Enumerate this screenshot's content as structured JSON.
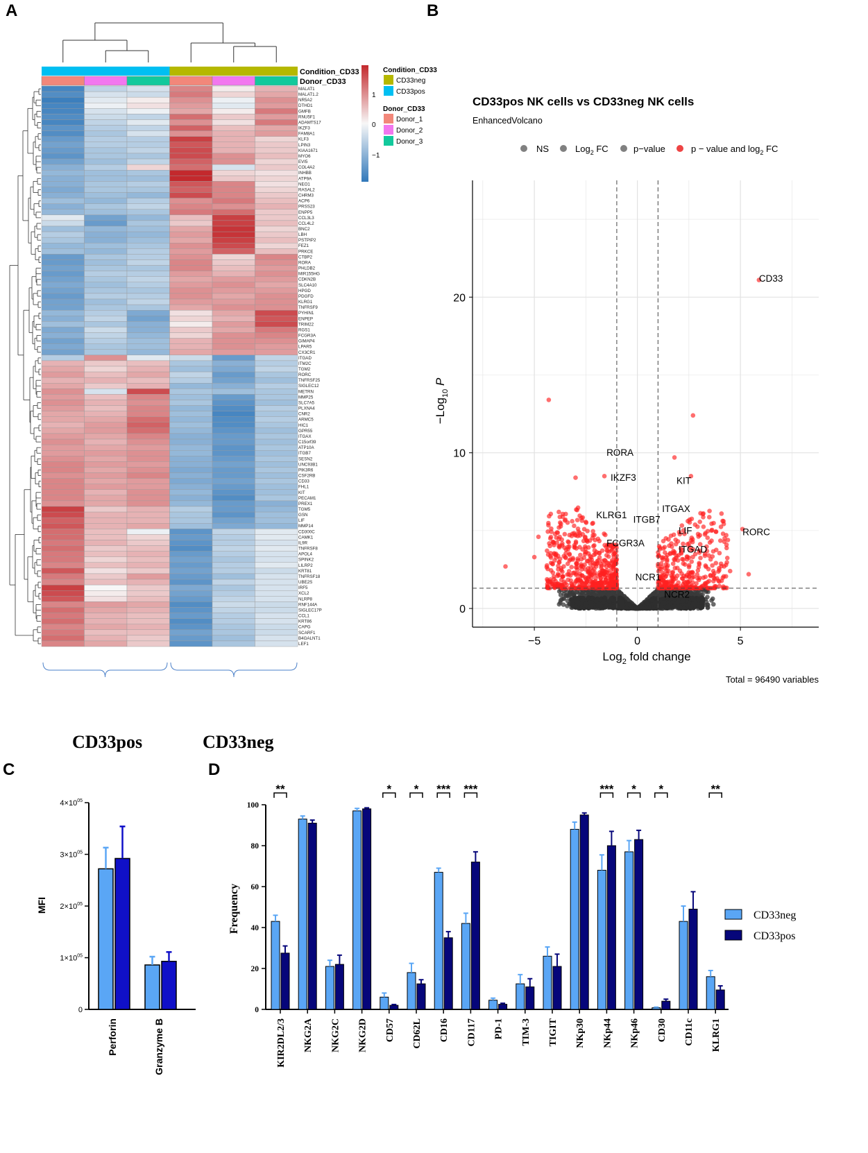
{
  "panels": {
    "a": "A",
    "b": "B",
    "c": "C",
    "d": "D"
  },
  "heatmap": {
    "group_labels": [
      "CD33pos",
      "CD33neg"
    ],
    "annotation_titles": [
      "Condition_CD33",
      "Donor_CD33"
    ],
    "legend": {
      "condition_title": "Condition_CD33",
      "condition_items": [
        {
          "label": "CD33neg",
          "color": "#b5b800"
        },
        {
          "label": "CD33pos",
          "color": "#00bff2"
        }
      ],
      "donor_title": "Donor_CD33",
      "donor_items": [
        {
          "label": "Donor_1",
          "color": "#f2877a"
        },
        {
          "label": "Donor_2",
          "color": "#f277ef"
        },
        {
          "label": "Donor_3",
          "color": "#12c99c"
        }
      ],
      "scale_ticks": [
        "1",
        "0",
        "−1"
      ]
    },
    "column_condition": [
      "CD33pos",
      "CD33pos",
      "CD33pos",
      "CD33neg",
      "CD33neg",
      "CD33neg"
    ],
    "column_donor": [
      "Donor_1",
      "Donor_2",
      "Donor_3",
      "Donor_1",
      "Donor_2",
      "Donor_3"
    ],
    "genes": [
      "MALAT1",
      "MALAT1.2",
      "NR5A2",
      "DTHD1",
      "GMFB",
      "RNU5F1",
      "ADAMTS17",
      "IKZF3",
      "FAM8A1",
      "KLF3",
      "LPIN3",
      "KIAA1671",
      "MYO6",
      "EVI5",
      "COL4A2",
      "INHBB",
      "ATP9A",
      "NEO1",
      "RASAL2",
      "CHRM3",
      "ACP6",
      "PRSS23",
      "ENPP5",
      "CCL3L3",
      "CCL4L2",
      "BNC2",
      "LBH",
      "PSTPIP2",
      "FEZ1",
      "PRKCE",
      "CTBP2",
      "RORA",
      "PHLDB2",
      "MIR155HG",
      "CDKN2B",
      "SLC4A10",
      "HPGD",
      "PDGFD",
      "KLRG1",
      "TNFRSF9",
      "PYHIN1",
      "ENPEP",
      "TRIM22",
      "RGS1",
      "FCGR3A",
      "GIMAP4",
      "LPAR5",
      "CX3CR1",
      "ITGAD",
      "ITM2C",
      "TGM2",
      "RORC",
      "TNFRSF25",
      "SIGLEC12",
      "METRN",
      "MMP25",
      "SLC7A5",
      "PLXNA4",
      "CNR2",
      "ARMC5",
      "HIC1",
      "GPR55",
      "ITGAX",
      "C15orf39",
      "ATP10A",
      "ITGB7",
      "SESN2",
      "UNC93B1",
      "PIK3R6",
      "CSF2RB",
      "CD33",
      "FHL1",
      "KIT",
      "PECAM1",
      "PREX1",
      "TGM5",
      "GSN",
      "LIF",
      "MMP14",
      "CD300C",
      "CAMK1",
      "IL9R",
      "TNFRSF8",
      "APOL4",
      "SPINK2",
      "LILRP2",
      "KRT81",
      "TNFRSF18",
      "UBE2S",
      "IRF5",
      "XCL2",
      "NLRP8",
      "RNF144A",
      "SIGLEC17P",
      "CCL1",
      "KRT86",
      "CAPG",
      "SCARF1",
      "B4GALNT1",
      "LEF1"
    ],
    "values": [
      [
        -1.6,
        -0.5,
        -0.3,
        1.0,
        0.1,
        0.6
      ],
      [
        -1.5,
        -0.3,
        -0.4,
        1.1,
        0.3,
        0.7
      ],
      [
        -1.7,
        -0.2,
        0.1,
        0.9,
        -0.1,
        0.9
      ],
      [
        -1.6,
        -0.1,
        0.2,
        0.8,
        -0.2,
        0.8
      ],
      [
        -1.6,
        -0.3,
        -0.1,
        0.7,
        0.1,
        1.1
      ],
      [
        -1.5,
        -0.4,
        -0.5,
        1.2,
        0.4,
        0.8
      ],
      [
        -1.6,
        -0.5,
        -0.2,
        0.9,
        0.2,
        1.1
      ],
      [
        -1.4,
        -0.6,
        -0.5,
        1.3,
        0.5,
        0.7
      ],
      [
        -1.5,
        -0.7,
        -0.3,
        0.9,
        0.6,
        0.8
      ],
      [
        -1.3,
        -0.6,
        -0.6,
        1.6,
        0.6,
        0.3
      ],
      [
        -1.2,
        -0.6,
        -0.6,
        1.4,
        0.6,
        0.4
      ],
      [
        -1.3,
        -0.7,
        -0.5,
        1.5,
        0.6,
        0.4
      ],
      [
        -1.4,
        -0.7,
        -0.7,
        1.5,
        0.9,
        0.5
      ],
      [
        -1.2,
        -0.8,
        -0.5,
        1.3,
        0.9,
        0.3
      ],
      [
        -1.0,
        -0.6,
        0.3,
        1.2,
        -0.3,
        0.4
      ],
      [
        -0.9,
        -0.8,
        -0.7,
        1.9,
        0.3,
        0.2
      ],
      [
        -1.0,
        -0.8,
        -0.8,
        1.9,
        0.4,
        0.3
      ],
      [
        -1.0,
        -0.7,
        -0.6,
        1.4,
        1.0,
        0.2
      ],
      [
        -1.1,
        -0.7,
        -0.7,
        1.3,
        1.0,
        0.3
      ],
      [
        -1.0,
        -0.8,
        -0.9,
        1.5,
        1.0,
        0.4
      ],
      [
        -0.8,
        -0.9,
        -0.6,
        0.9,
        1.1,
        0.5
      ],
      [
        -1.0,
        -0.7,
        -0.5,
        1.0,
        0.9,
        0.6
      ],
      [
        -0.9,
        -0.8,
        -0.7,
        1.1,
        1.2,
        0.4
      ],
      [
        -0.2,
        -1.2,
        -0.9,
        0.5,
        1.6,
        0.4
      ],
      [
        -0.4,
        -1.3,
        -0.7,
        0.4,
        1.6,
        0.5
      ],
      [
        -0.8,
        -0.9,
        -0.8,
        0.7,
        1.7,
        0.3
      ],
      [
        -0.6,
        -1.0,
        -0.9,
        0.8,
        1.7,
        0.4
      ],
      [
        -0.7,
        -1.0,
        -0.8,
        0.7,
        1.6,
        0.5
      ],
      [
        -0.9,
        -0.8,
        -0.7,
        0.9,
        1.5,
        0.3
      ],
      [
        -0.8,
        -0.9,
        -0.6,
        0.8,
        1.3,
        0.5
      ],
      [
        -1.3,
        -0.7,
        -0.6,
        0.9,
        0.3,
        1.0
      ],
      [
        -1.3,
        -0.8,
        -0.5,
        1.0,
        0.4,
        0.9
      ],
      [
        -1.2,
        -0.7,
        -0.7,
        1.0,
        0.5,
        0.8
      ],
      [
        -1.3,
        -0.6,
        -0.6,
        0.8,
        0.6,
        0.9
      ],
      [
        -1.2,
        -0.7,
        -0.5,
        0.7,
        0.8,
        0.8
      ],
      [
        -1.1,
        -0.8,
        -0.6,
        0.8,
        0.9,
        0.7
      ],
      [
        -1.2,
        -0.7,
        -0.7,
        0.9,
        0.8,
        0.8
      ],
      [
        -1.3,
        -0.6,
        -0.6,
        0.9,
        0.7,
        0.9
      ],
      [
        -1.2,
        -0.8,
        -0.5,
        0.8,
        0.8,
        0.9
      ],
      [
        -1.2,
        -0.7,
        -0.7,
        0.7,
        0.9,
        0.9
      ],
      [
        -0.9,
        -0.6,
        -1.1,
        0.2,
        0.7,
        1.5
      ],
      [
        -1.0,
        -0.5,
        -1.2,
        0.3,
        0.6,
        1.4
      ],
      [
        -0.8,
        -0.7,
        -1.0,
        0.1,
        0.8,
        1.5
      ],
      [
        -1.1,
        -0.4,
        -1.0,
        0.4,
        0.7,
        1.1
      ],
      [
        -1.0,
        -0.5,
        -0.9,
        0.3,
        0.9,
        1.0
      ],
      [
        -1.2,
        -0.6,
        -0.8,
        0.6,
        0.9,
        0.9
      ],
      [
        -1.1,
        -0.7,
        -0.8,
        0.6,
        0.9,
        0.8
      ],
      [
        -1.2,
        -0.7,
        -0.9,
        0.7,
        0.8,
        0.8
      ],
      [
        -0.6,
        0.9,
        -0.2,
        -0.4,
        -1.3,
        -0.5
      ],
      [
        0.6,
        0.4,
        0.5,
        -0.7,
        -1.0,
        -0.6
      ],
      [
        0.7,
        0.3,
        0.6,
        -0.8,
        -1.1,
        -0.5
      ],
      [
        0.8,
        0.5,
        0.7,
        -0.5,
        -1.3,
        -0.7
      ],
      [
        0.6,
        0.6,
        0.5,
        -0.6,
        -1.2,
        -0.8
      ],
      [
        0.7,
        0.4,
        0.6,
        -0.9,
        -1.0,
        -0.6
      ],
      [
        0.9,
        -0.3,
        1.5,
        -0.7,
        -0.8,
        -0.7
      ],
      [
        0.8,
        0.5,
        1.0,
        -0.8,
        -1.3,
        -0.7
      ],
      [
        0.9,
        0.6,
        0.9,
        -0.7,
        -1.4,
        -0.8
      ],
      [
        0.8,
        0.5,
        1.0,
        -0.9,
        -1.5,
        -0.6
      ],
      [
        0.7,
        0.6,
        1.0,
        -0.8,
        -1.6,
        -0.7
      ],
      [
        0.7,
        0.7,
        1.2,
        -0.9,
        -1.5,
        -0.6
      ],
      [
        0.6,
        0.8,
        1.3,
        -0.8,
        -1.5,
        -0.7
      ],
      [
        0.7,
        0.8,
        1.2,
        -0.9,
        -1.4,
        -0.8
      ],
      [
        0.8,
        0.7,
        1.0,
        -1.0,
        -1.3,
        -0.7
      ],
      [
        0.9,
        0.6,
        0.9,
        -1.0,
        -1.3,
        -0.8
      ],
      [
        0.8,
        0.7,
        0.8,
        -0.9,
        -1.4,
        -0.7
      ],
      [
        0.8,
        0.8,
        0.9,
        -0.9,
        -1.4,
        -0.8
      ],
      [
        0.9,
        0.7,
        0.9,
        -1.0,
        -1.3,
        -0.7
      ],
      [
        1.0,
        0.8,
        0.8,
        -1.0,
        -1.2,
        -0.8
      ],
      [
        1.0,
        0.7,
        0.9,
        -1.1,
        -1.3,
        -0.7
      ],
      [
        0.9,
        0.8,
        1.0,
        -1.0,
        -1.3,
        -0.8
      ],
      [
        1.0,
        0.7,
        0.8,
        -1.1,
        -1.2,
        -0.7
      ],
      [
        1.0,
        0.8,
        0.8,
        -1.0,
        -1.3,
        -0.8
      ],
      [
        1.0,
        0.6,
        0.9,
        -0.9,
        -1.4,
        -0.8
      ],
      [
        1.0,
        0.7,
        0.9,
        -1.0,
        -1.5,
        -0.7
      ],
      [
        0.9,
        0.7,
        0.9,
        -0.9,
        -1.3,
        -1.0
      ],
      [
        1.6,
        0.4,
        0.6,
        -0.6,
        -1.3,
        -0.9
      ],
      [
        1.5,
        0.6,
        0.6,
        -0.7,
        -1.4,
        -0.8
      ],
      [
        1.3,
        0.6,
        0.6,
        -0.7,
        -1.2,
        -0.8
      ],
      [
        1.4,
        0.6,
        0.7,
        -0.8,
        -1.1,
        -0.9
      ],
      [
        1.2,
        0.5,
        -0.1,
        -1.4,
        -0.5,
        -0.2
      ],
      [
        1.2,
        0.5,
        0.3,
        -1.3,
        -0.6,
        -0.2
      ],
      [
        1.1,
        0.6,
        0.4,
        -1.4,
        -0.6,
        -0.3
      ],
      [
        1.2,
        0.4,
        0.5,
        -1.5,
        -0.5,
        -0.2
      ],
      [
        1.1,
        0.5,
        0.6,
        -1.3,
        -0.6,
        -0.3
      ],
      [
        1.1,
        0.3,
        0.5,
        -1.2,
        -0.7,
        -0.3
      ],
      [
        1.0,
        0.5,
        0.6,
        -1.3,
        -0.6,
        -0.2
      ],
      [
        1.4,
        0.2,
        0.4,
        -1.2,
        -0.6,
        -0.4
      ],
      [
        1.1,
        0.4,
        0.8,
        -1.3,
        -0.8,
        -0.3
      ],
      [
        1.0,
        0.5,
        0.6,
        -1.4,
        -0.5,
        -0.3
      ],
      [
        1.6,
        0.0,
        0.4,
        -1.1,
        -0.7,
        -0.3
      ],
      [
        1.5,
        0.1,
        0.4,
        -1.2,
        -0.6,
        -0.3
      ],
      [
        1.4,
        0.2,
        0.5,
        -1.3,
        -0.5,
        -0.3
      ],
      [
        1.0,
        0.8,
        0.7,
        -1.5,
        -0.4,
        -0.4
      ],
      [
        1.2,
        0.7,
        0.6,
        -1.4,
        -0.5,
        -0.4
      ],
      [
        1.1,
        0.6,
        0.5,
        -1.3,
        -0.6,
        -0.3
      ],
      [
        1.2,
        0.6,
        0.5,
        -1.5,
        -0.6,
        -0.3
      ],
      [
        1.0,
        0.7,
        0.6,
        -1.4,
        -0.7,
        -0.4
      ],
      [
        1.1,
        0.5,
        0.5,
        -1.2,
        -0.7,
        -0.4
      ],
      [
        1.2,
        0.6,
        0.4,
        -1.3,
        -0.8,
        -0.3
      ],
      [
        1.0,
        0.7,
        0.4,
        -1.4,
        -0.7,
        -0.3
      ]
    ]
  },
  "volcano": {
    "title": "CD33pos NK cells vs CD33neg NK cells",
    "subtitle": "EnhancedVolcano",
    "legend": [
      {
        "label": "NS",
        "color": "#808080"
      },
      {
        "label": "Log2 FC",
        "color": "#808080"
      },
      {
        "label": "p−value",
        "color": "#808080"
      },
      {
        "label": "p − value and log2 FC",
        "color": "#ee4444"
      }
    ],
    "legend_parts": {
      "log": "Log",
      "sub": "2",
      "fc": " FC",
      "pv_a": "p − value and log",
      "pv_b": " FC"
    },
    "xlabel_main": "Log",
    "xlabel_sub": "2",
    "xlabel_rest": " fold change",
    "ylabel_pre": "−Log",
    "ylabel_sub": "10",
    "ylabel_p": "P",
    "x_ticks": [
      "−5",
      "0",
      "5"
    ],
    "y_ticks": [
      "0",
      "10",
      "20"
    ],
    "total": "Total = 96490 variables",
    "xlim": [
      -8,
      8.8
    ],
    "ylim": [
      -1.2,
      27.5
    ],
    "fc_cutoff": 1,
    "p_cutoff_y": 1.3,
    "labels": [
      {
        "text": "CD33",
        "x": 5.9,
        "y": 21
      },
      {
        "text": "RORA",
        "x": -1.5,
        "y": 9.8
      },
      {
        "text": "IKZF3",
        "x": -1.3,
        "y": 8.2
      },
      {
        "text": "KIT",
        "x": 1.9,
        "y": 8.0
      },
      {
        "text": "ITGAX",
        "x": 1.2,
        "y": 6.2
      },
      {
        "text": "KLRG1",
        "x": -2.0,
        "y": 5.8
      },
      {
        "text": "ITGB7",
        "x": -0.2,
        "y": 5.5
      },
      {
        "text": "LIF",
        "x": 2.0,
        "y": 4.8
      },
      {
        "text": "RORC",
        "x": 5.1,
        "y": 4.7
      },
      {
        "text": "FCGR3A",
        "x": -1.5,
        "y": 4.0
      },
      {
        "text": "ITGAD",
        "x": 2.0,
        "y": 3.6
      },
      {
        "text": "NCR1",
        "x": -0.1,
        "y": 1.8
      },
      {
        "text": "NCR2",
        "x": 1.3,
        "y": 0.7
      }
    ]
  },
  "chart_data": [
    {
      "type": "bar",
      "title": "",
      "ylabel": "MFI",
      "categories": [
        "Perforin",
        "Granzyme B"
      ],
      "series": [
        {
          "name": "CD33neg",
          "values": [
            272000,
            86000
          ],
          "errors": [
            41000,
            16000
          ],
          "color": "#5aa6f5"
        },
        {
          "name": "CD33pos",
          "values": [
            292000,
            93000
          ],
          "errors": [
            62000,
            18000
          ],
          "color": "#1010c8"
        }
      ],
      "ylim": [
        0,
        400000
      ],
      "y_ticks": [
        {
          "value": 400000,
          "mant": "4×10",
          "exp": "05"
        },
        {
          "value": 300000,
          "mant": "3×10",
          "exp": "05"
        },
        {
          "value": 200000,
          "mant": "2×10",
          "exp": "05"
        },
        {
          "value": 100000,
          "mant": "1×10",
          "exp": "05"
        },
        {
          "value": 0,
          "mant": "0",
          "exp": ""
        }
      ]
    },
    {
      "type": "bar",
      "title": "",
      "ylabel": "Frequency",
      "categories": [
        "KIR2DL2/3",
        "NKG2A",
        "NKG2C",
        "NKG2D",
        "CD57",
        "CD62L",
        "CD16",
        "CD117",
        "PD-1",
        "TIM-3",
        "TIGIT",
        "NKp30",
        "NKp44",
        "NKp46",
        "CD30",
        "CD11c",
        "KLRG1"
      ],
      "series": [
        {
          "name": "CD33neg",
          "values": [
            43,
            93,
            21,
            97,
            6,
            18,
            67,
            42,
            4.5,
            12.5,
            26,
            88,
            68,
            77,
            0.8,
            43,
            16
          ],
          "errors": [
            3,
            1.5,
            3,
            1.2,
            2,
            4.5,
            2,
            5,
            1,
            4.5,
            4.5,
            3.5,
            7.5,
            5.5,
            0.3,
            7.5,
            3
          ],
          "color": "#5aa6f5"
        },
        {
          "name": "CD33pos",
          "values": [
            27.5,
            91,
            22,
            98,
            2,
            12.5,
            35,
            72,
            2.5,
            11,
            21,
            95,
            80,
            83,
            4,
            49,
            9.5
          ],
          "errors": [
            3.5,
            1.5,
            4.5,
            0.5,
            0.4,
            2,
            3,
            5,
            0.5,
            4,
            6,
            1,
            7,
            4.5,
            1,
            8.5,
            2
          ],
          "color": "#06067a"
        }
      ],
      "significance": [
        {
          "category": "KIR2DL2/3",
          "label": "**"
        },
        {
          "category": "CD57",
          "label": "*"
        },
        {
          "category": "CD62L",
          "label": "*"
        },
        {
          "category": "CD16",
          "label": "***"
        },
        {
          "category": "CD117",
          "label": "***"
        },
        {
          "category": "NKp44",
          "label": "***"
        },
        {
          "category": "NKp46",
          "label": "*"
        },
        {
          "category": "CD30",
          "label": "*"
        },
        {
          "category": "KLRG1",
          "label": "**"
        }
      ],
      "ylim": [
        0,
        100
      ],
      "y_ticks": [
        "0",
        "20",
        "40",
        "60",
        "80",
        "100"
      ]
    }
  ]
}
